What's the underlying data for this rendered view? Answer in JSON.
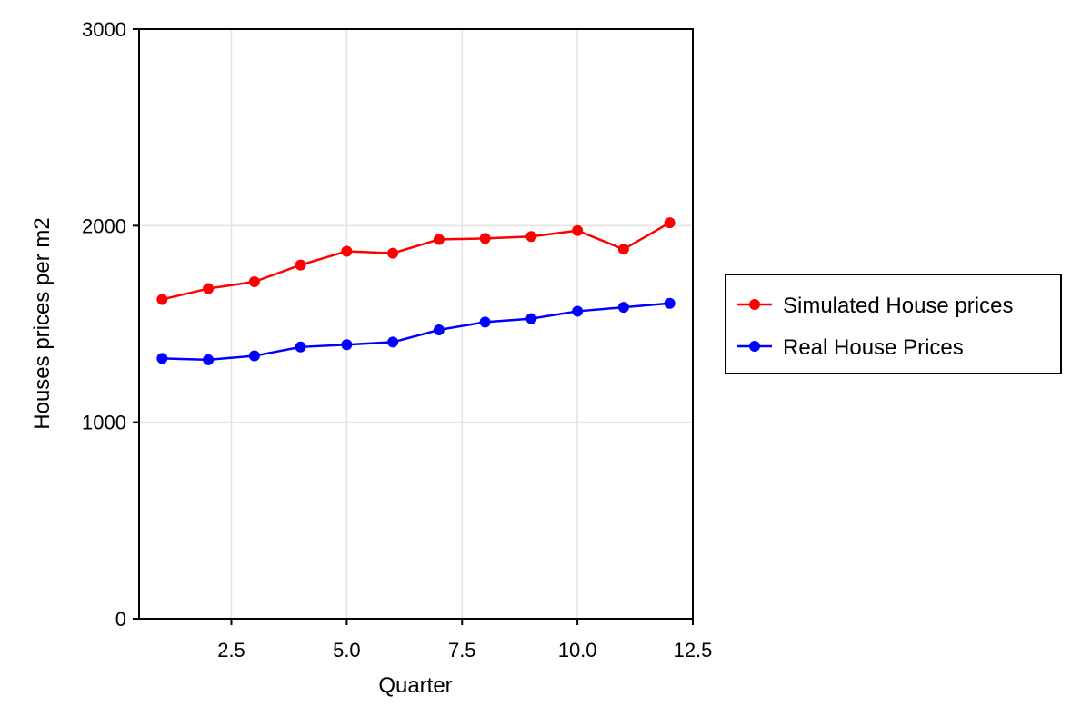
{
  "chart_data": {
    "type": "line",
    "title": "",
    "xlabel": "Quarter",
    "ylabel": "Houses prices per m2",
    "xlim": [
      0.5,
      12.5
    ],
    "ylim": [
      0,
      3000
    ],
    "x_ticks": [
      2.5,
      5.0,
      7.5,
      10.0,
      12.5
    ],
    "x_tick_labels": [
      "2.5",
      "5.0",
      "7.5",
      "10.0",
      "12.5"
    ],
    "y_ticks": [
      0,
      1000,
      2000,
      3000
    ],
    "y_tick_labels": [
      "0",
      "1000",
      "2000",
      "3000"
    ],
    "grid": true,
    "legend_position": "right",
    "x": [
      1,
      2,
      3,
      4,
      5,
      6,
      7,
      8,
      9,
      10,
      11,
      12
    ],
    "series": [
      {
        "name": "Simulated House prices",
        "color": "#ff0000",
        "values": [
          1625,
          1680,
          1715,
          1800,
          1870,
          1860,
          1930,
          1935,
          1945,
          1975,
          1880,
          2015
        ]
      },
      {
        "name": "Real House Prices",
        "color": "#0000ff",
        "values": [
          1325,
          1318,
          1338,
          1383,
          1395,
          1408,
          1470,
          1510,
          1527,
          1565,
          1585,
          1605
        ]
      }
    ]
  }
}
